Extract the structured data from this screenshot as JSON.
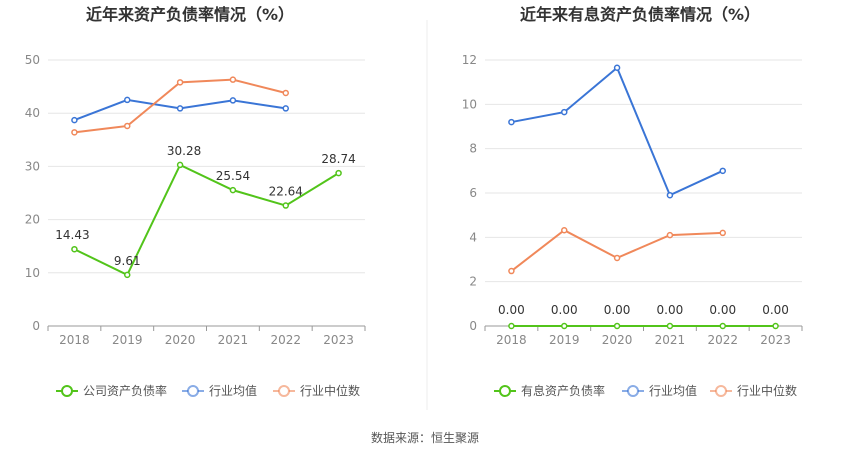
{
  "footer": "数据来源：恒生聚源",
  "chart_data": [
    {
      "type": "line",
      "title": "近年来资产负债率情况（%）",
      "categories": [
        "2018",
        "2019",
        "2020",
        "2021",
        "2022",
        "2023"
      ],
      "ylim": [
        0,
        50
      ],
      "yticks": [
        0,
        10,
        20,
        30,
        40,
        50
      ],
      "grid": true,
      "legend": "bottom",
      "series": [
        {
          "name": "公司资产负债率",
          "color": "#52c41a",
          "values": [
            14.43,
            9.61,
            30.28,
            25.54,
            22.64,
            28.74
          ],
          "labels": [
            "14.43",
            "9.61",
            "30.28",
            "25.54",
            "22.64",
            "28.74"
          ]
        },
        {
          "name": "行业均值",
          "color": "#3a75d6",
          "values": [
            38.7,
            42.5,
            40.9,
            42.4,
            40.9,
            null
          ]
        },
        {
          "name": "行业中位数",
          "color": "#f0885a",
          "values": [
            36.4,
            37.6,
            45.8,
            46.3,
            43.8,
            null
          ]
        }
      ]
    },
    {
      "type": "line",
      "title": "近年来有息资产负债率情况（%）",
      "categories": [
        "2018",
        "2019",
        "2020",
        "2021",
        "2022",
        "2023"
      ],
      "ylim": [
        0,
        12
      ],
      "yticks": [
        0,
        2,
        4,
        6,
        8,
        10,
        12
      ],
      "grid": true,
      "legend": "bottom",
      "series": [
        {
          "name": "有息资产负债率",
          "color": "#52c41a",
          "values": [
            0,
            0,
            0,
            0,
            0,
            0
          ],
          "labels": [
            "0.00",
            "0.00",
            "0.00",
            "0.00",
            "0.00",
            "0.00"
          ]
        },
        {
          "name": "行业均值",
          "color": "#3a75d6",
          "values": [
            9.2,
            9.65,
            11.65,
            5.9,
            7.0,
            null
          ]
        },
        {
          "name": "行业中位数",
          "color": "#f0885a",
          "values": [
            2.48,
            4.32,
            3.07,
            4.1,
            4.2,
            null
          ]
        }
      ]
    }
  ]
}
